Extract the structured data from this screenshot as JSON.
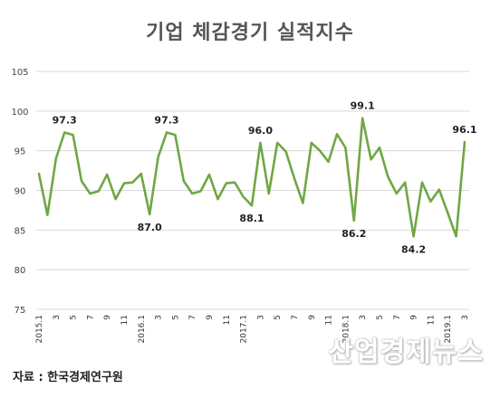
{
  "page": {
    "title": "기업 체감경기 실적지수",
    "source_text": "자료 : 한국경제연구원",
    "watermark_text": "산업경제뉴스"
  },
  "chart_data": {
    "type": "line",
    "title": "기업 체감경기 실적지수",
    "xlabel": "",
    "ylabel": "",
    "ylim": [
      75,
      105
    ],
    "yticks": [
      75,
      80,
      85,
      90,
      95,
      100,
      105
    ],
    "grid": true,
    "line_color": "#70a744",
    "x_tick_labels": [
      "2015.1",
      "3",
      "5",
      "7",
      "9",
      "11",
      "2016.1",
      "3",
      "5",
      "7",
      "9",
      "11",
      "2017.1",
      "3",
      "5",
      "7",
      "9",
      "11",
      "2018.1",
      "3",
      "5",
      "7",
      "9",
      "11",
      "2019.1",
      "3"
    ],
    "x": [
      "2015.1",
      "2015.2",
      "2015.3",
      "2015.4",
      "2015.5",
      "2015.6",
      "2015.7",
      "2015.8",
      "2015.9",
      "2015.10",
      "2015.11",
      "2015.12",
      "2016.1",
      "2016.2",
      "2016.3",
      "2016.4",
      "2016.5",
      "2016.6",
      "2016.7",
      "2016.8",
      "2016.9",
      "2016.10",
      "2016.11",
      "2016.12",
      "2017.1",
      "2017.2",
      "2017.3",
      "2017.4",
      "2017.5",
      "2017.6",
      "2017.7",
      "2017.8",
      "2017.9",
      "2017.10",
      "2017.11",
      "2017.12",
      "2018.1",
      "2018.2",
      "2018.3",
      "2018.4",
      "2018.5",
      "2018.6",
      "2018.7",
      "2018.8",
      "2018.9",
      "2018.10",
      "2018.11",
      "2018.12",
      "2019.1",
      "2019.2",
      "2019.3"
    ],
    "values": [
      92.1,
      86.9,
      94.0,
      97.3,
      97.0,
      91.2,
      89.6,
      89.9,
      92.0,
      88.9,
      90.9,
      91.0,
      92.1,
      87.0,
      94.2,
      97.3,
      97.0,
      91.2,
      89.6,
      89.9,
      92.0,
      88.9,
      90.9,
      91.0,
      89.2,
      88.1,
      96.0,
      89.6,
      96.0,
      94.9,
      91.5,
      88.4,
      96.0,
      95.0,
      93.6,
      97.1,
      95.4,
      86.2,
      99.1,
      93.9,
      95.4,
      91.7,
      89.6,
      91.0,
      84.2,
      91.0,
      88.6,
      90.1,
      87.2,
      84.2,
      96.1
    ],
    "data_labels": [
      {
        "index": 3,
        "text": "97.3",
        "pos": "above"
      },
      {
        "index": 13,
        "text": "87.0",
        "pos": "below"
      },
      {
        "index": 15,
        "text": "97.3",
        "pos": "above"
      },
      {
        "index": 25,
        "text": "88.1",
        "pos": "below"
      },
      {
        "index": 26,
        "text": "96.0",
        "pos": "above"
      },
      {
        "index": 37,
        "text": "86.2",
        "pos": "below"
      },
      {
        "index": 38,
        "text": "99.1",
        "pos": "above"
      },
      {
        "index": 44,
        "text": "84.2",
        "pos": "below"
      },
      {
        "index": 50,
        "text": "96.1",
        "pos": "above"
      }
    ]
  }
}
